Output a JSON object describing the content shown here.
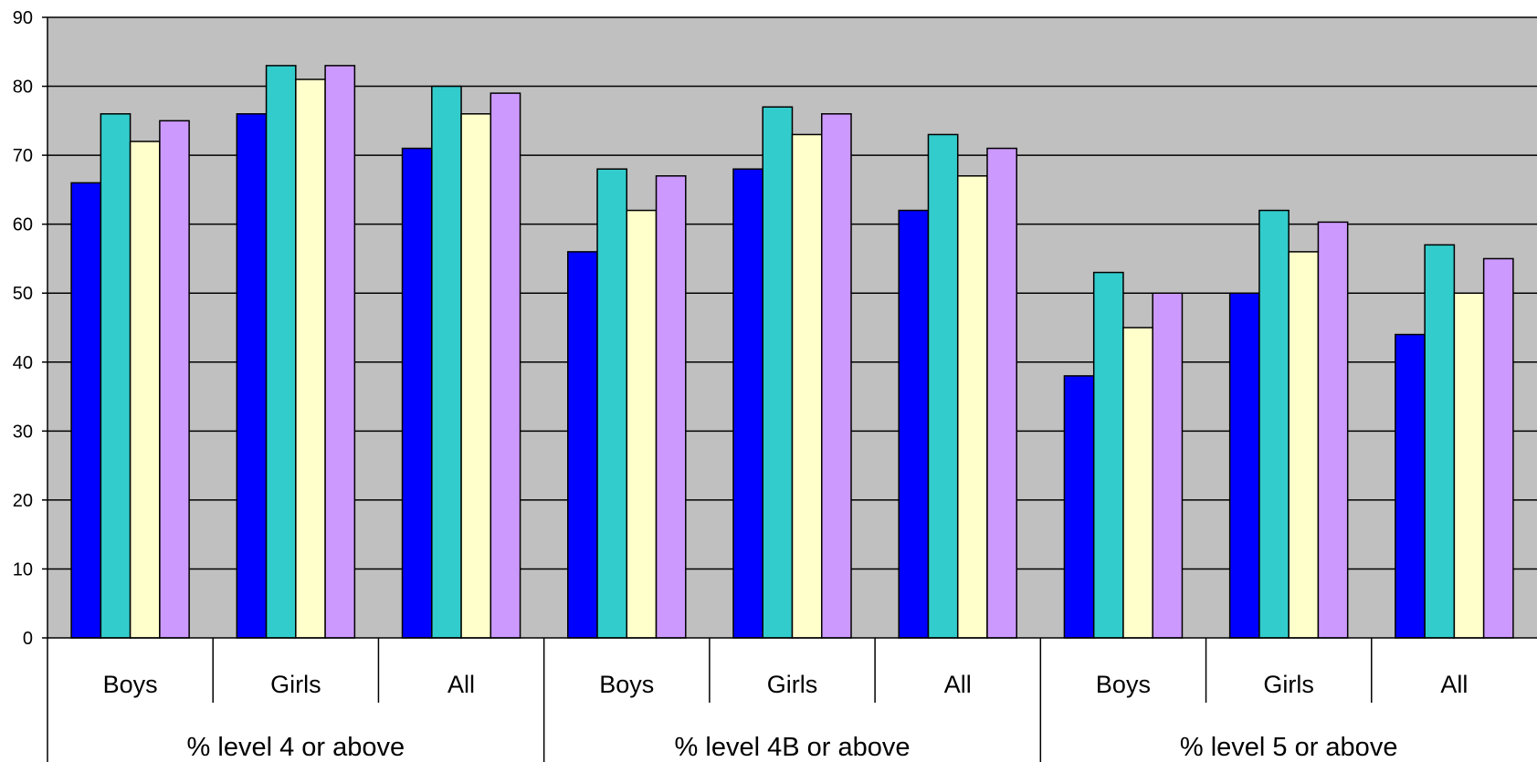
{
  "chart_data": {
    "type": "bar",
    "title": "",
    "xlabel": "",
    "ylabel": "",
    "ylim": [
      0,
      90
    ],
    "yticks": [
      0,
      10,
      20,
      30,
      40,
      50,
      60,
      70,
      80,
      90
    ],
    "grid": true,
    "legend": "none",
    "background_color": "#c0c0c0",
    "groups": [
      {
        "label": "% level 4 or above",
        "categories": [
          "Boys",
          "Girls",
          "All"
        ]
      },
      {
        "label": "% level 4B or above",
        "categories": [
          "Boys",
          "Girls",
          "All"
        ]
      },
      {
        "label": "% level 5 or above",
        "categories": [
          "Boys",
          "Girls",
          "All"
        ]
      }
    ],
    "categories": [
      "Boys",
      "Girls",
      "All",
      "Boys",
      "Girls",
      "All",
      "Boys",
      "Girls",
      "All"
    ],
    "series": [
      {
        "color": "#0000ff",
        "values": [
          66,
          76,
          71,
          56,
          68,
          62,
          38,
          50,
          44
        ]
      },
      {
        "color": "#33cccc",
        "values": [
          76,
          83,
          80,
          68,
          77,
          73,
          53,
          62,
          57
        ]
      },
      {
        "color": "#ffffcc",
        "values": [
          72,
          81,
          76,
          62,
          73,
          67,
          45,
          56,
          50
        ]
      },
      {
        "color": "#cc99ff",
        "values": [
          75,
          83,
          79,
          67,
          76,
          71,
          50,
          60.3,
          55
        ]
      }
    ]
  }
}
